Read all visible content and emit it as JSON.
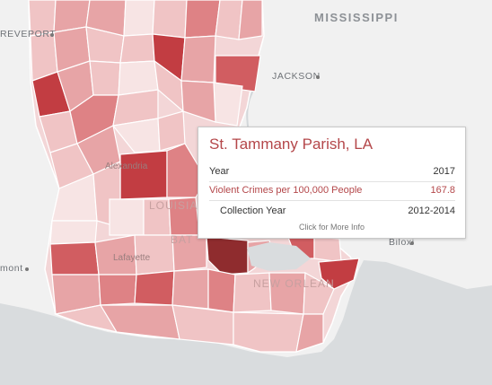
{
  "map_labels": {
    "state": "MISSISSIPPI",
    "jackson": "JACKSON",
    "shreveport": "REVEPORT",
    "alexandria": "Alexandria",
    "louisiana": "LOUISIA",
    "baton_rouge": "BAT",
    "lafayette": "Lafayette",
    "new_orleans": "NEW ORLEAN",
    "biloxi": "Biloxi",
    "beaumont": "mont"
  },
  "colors": {
    "water": "#d9dcde",
    "land": "#f1f1f1",
    "accent": "#b4474a",
    "choropleth_scale": [
      "#f7e4e4",
      "#f0c4c5",
      "#e7a4a6",
      "#de8285",
      "#d15d61",
      "#c23d42",
      "#8f2c2e"
    ]
  },
  "tooltip": {
    "title": "St. Tammany Parish, LA",
    "rows": [
      {
        "label": "Year",
        "value": "2017"
      },
      {
        "label": "Violent Crimes per 100,000 People",
        "value": "167.8"
      },
      {
        "label": "Collection Year",
        "value": "2012-2014"
      }
    ],
    "link": "Click for More Info"
  }
}
